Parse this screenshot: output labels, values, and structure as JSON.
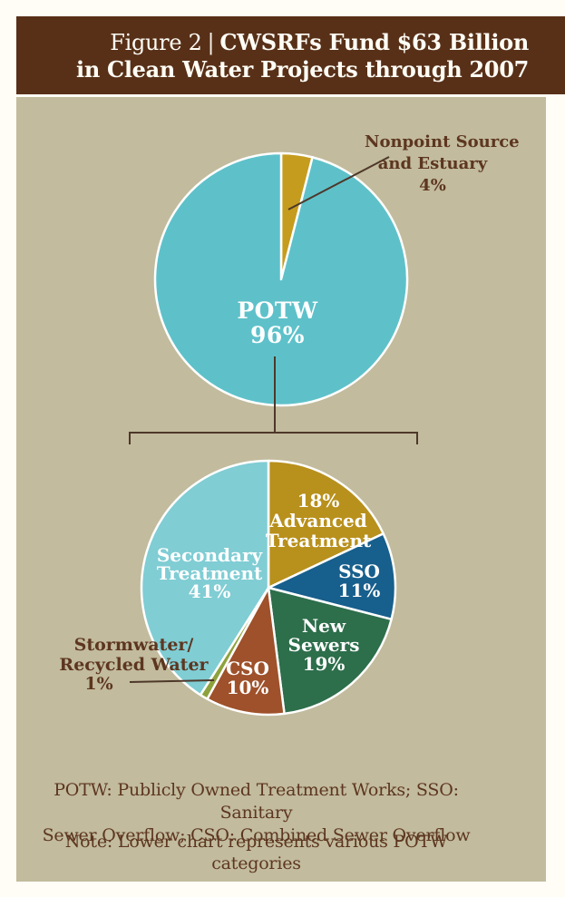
{
  "header": {
    "figure_label": "Figure 2",
    "separator": "|",
    "title_line1": "CWSRFs Fund $63 Billion",
    "title_line2": "in Clean Water Projects through 2007"
  },
  "colors": {
    "page_bg": "#fffdf6",
    "header_bg": "#583018",
    "panel_bg": "#c2bb9d",
    "dark_text": "#5d3620",
    "white_text": "#ffffff",
    "line": "#4e382a",
    "slice_border": "#ffffff"
  },
  "chart_data": [
    {
      "type": "pie",
      "name": "cwsrf-total-funding",
      "title": "CWSRFs Fund $63 Billion in Clean Water Projects through 2007",
      "units": "percent of $63 billion",
      "start_angle_deg": 0,
      "legend": "labels on chart",
      "slices": [
        {
          "label": "Nonpoint Source and Estuary",
          "value": 4,
          "color": "#c59c1e"
        },
        {
          "label": "POTW",
          "value": 96,
          "color": "#5ec1ca"
        }
      ]
    },
    {
      "type": "pie",
      "name": "potw-categories",
      "title": "POTW categories (lower chart)",
      "units": "percent",
      "start_angle_deg": 0,
      "legend": "labels on chart",
      "slices": [
        {
          "label": "Advanced Treatment",
          "value": 18,
          "color": "#b8901c"
        },
        {
          "label": "SSO",
          "value": 11,
          "color": "#175f8c"
        },
        {
          "label": "New Sewers",
          "value": 19,
          "color": "#2d6e4b"
        },
        {
          "label": "CSO",
          "value": 10,
          "color": "#9e512a"
        },
        {
          "label": "Stormwater/Recycled Water",
          "value": 1,
          "color": "#8da23c"
        },
        {
          "label": "Secondary Treatment",
          "value": 41,
          "color": "#80cdd4"
        }
      ]
    }
  ],
  "labels": {
    "nonpoint": {
      "l1": "Nonpoint Source",
      "l2": "and Estuary",
      "l3": "4%"
    },
    "potw": {
      "l1": "POTW",
      "l2": "96%"
    },
    "advanced": {
      "l1": "18%",
      "l2": "Advanced",
      "l3": "Treatment"
    },
    "sso": {
      "l1": "SSO",
      "l2": "11%"
    },
    "new_sewers": {
      "l1": "New",
      "l2": "Sewers",
      "l3": "19%"
    },
    "cso": {
      "l1": "CSO",
      "l2": "10%"
    },
    "secondary": {
      "l1": "Secondary",
      "l2": "Treatment",
      "l3": "41%"
    },
    "stormwater": {
      "l1": "Stormwater/",
      "l2": "Recycled Water",
      "l3": "1%"
    }
  },
  "footer": {
    "abbrev_line1": "POTW: Publicly Owned Treatment Works; SSO: Sanitary",
    "abbrev_line2": "Sewer Overflow; CSO: Combined Sewer Overflow",
    "note": "Note: Lower chart represents various POTW categories"
  }
}
